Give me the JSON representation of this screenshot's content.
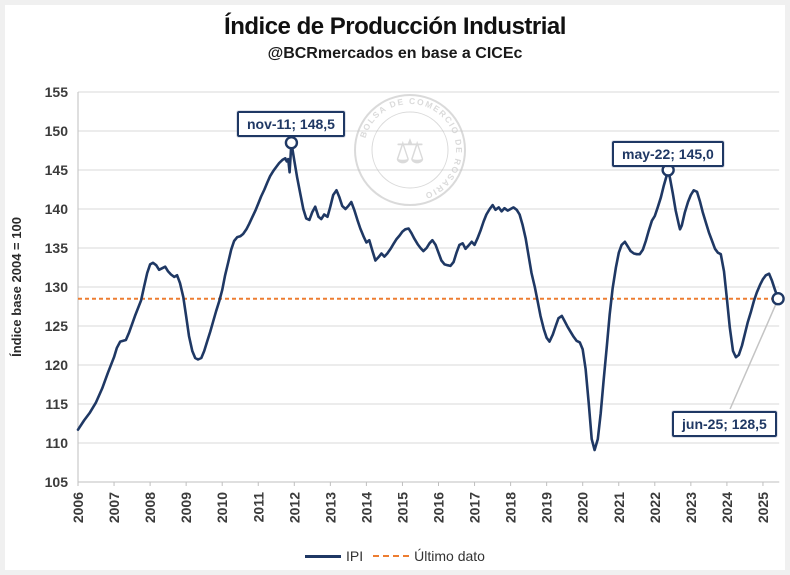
{
  "title": "Índice de Producción Industrial",
  "subtitle": "@BCRmercados en base a CICEc",
  "watermark_text": "BOLSA DE COMERCIO DE ROSARIO",
  "colors": {
    "ipi_line": "#1f3864",
    "ultimo_dato_line": "#ed7d31",
    "grid": "#dadada",
    "axis": "#bfbfbf",
    "tick_text": "#3b3b3b",
    "annotation": "#1f3864",
    "callout": "#c4c4c4",
    "watermark": "#bdbdbd"
  },
  "legend": {
    "items": [
      {
        "label": "IPI"
      },
      {
        "label": "Último dato"
      }
    ]
  },
  "chart_data": {
    "type": "line",
    "title": "Índice de Producción Industrial",
    "subtitle": "@BCRmercados en base a CICEc",
    "xlabel": "",
    "ylabel": "Índice base 2004 = 100",
    "ylim": [
      105,
      155
    ],
    "xlim": [
      2006,
      2025.5
    ],
    "grid": "horizontal",
    "legend_position": "bottom",
    "y_ticks": [
      105,
      110,
      115,
      120,
      125,
      130,
      135,
      140,
      145,
      150,
      155
    ],
    "x_ticks": [
      2006,
      2007,
      2008,
      2009,
      2010,
      2011,
      2012,
      2013,
      2014,
      2015,
      2016,
      2017,
      2018,
      2019,
      2020,
      2021,
      2022,
      2023,
      2024,
      2025
    ],
    "series": [
      {
        "name": "IPI",
        "style": "solid",
        "color": "#1f3864",
        "points": [
          [
            2006.0,
            111.7
          ],
          [
            2006.17,
            112.9
          ],
          [
            2006.33,
            113.9
          ],
          [
            2006.5,
            115.2
          ],
          [
            2006.67,
            117.0
          ],
          [
            2006.83,
            119.0
          ],
          [
            2007.0,
            121.0
          ],
          [
            2007.08,
            122.2
          ],
          [
            2007.17,
            123.0
          ],
          [
            2007.33,
            123.2
          ],
          [
            2007.42,
            124.2
          ],
          [
            2007.58,
            126.3
          ],
          [
            2007.75,
            128.3
          ],
          [
            2007.83,
            130.0
          ],
          [
            2007.92,
            131.8
          ],
          [
            2008.0,
            132.9
          ],
          [
            2008.08,
            133.1
          ],
          [
            2008.17,
            132.8
          ],
          [
            2008.25,
            132.2
          ],
          [
            2008.33,
            132.4
          ],
          [
            2008.42,
            132.6
          ],
          [
            2008.5,
            132.0
          ],
          [
            2008.58,
            131.6
          ],
          [
            2008.67,
            131.3
          ],
          [
            2008.75,
            131.5
          ],
          [
            2008.83,
            130.5
          ],
          [
            2008.92,
            128.7
          ],
          [
            2009.0,
            126.3
          ],
          [
            2009.08,
            123.7
          ],
          [
            2009.17,
            121.8
          ],
          [
            2009.25,
            120.9
          ],
          [
            2009.33,
            120.7
          ],
          [
            2009.42,
            120.9
          ],
          [
            2009.5,
            121.8
          ],
          [
            2009.58,
            123.0
          ],
          [
            2009.67,
            124.3
          ],
          [
            2009.75,
            125.6
          ],
          [
            2009.83,
            126.9
          ],
          [
            2009.92,
            128.2
          ],
          [
            2010.0,
            129.6
          ],
          [
            2010.08,
            131.5
          ],
          [
            2010.17,
            133.2
          ],
          [
            2010.25,
            134.8
          ],
          [
            2010.33,
            135.9
          ],
          [
            2010.42,
            136.4
          ],
          [
            2010.5,
            136.5
          ],
          [
            2010.58,
            136.8
          ],
          [
            2010.67,
            137.4
          ],
          [
            2010.75,
            138.1
          ],
          [
            2010.83,
            138.9
          ],
          [
            2010.92,
            139.8
          ],
          [
            2011.0,
            140.7
          ],
          [
            2011.08,
            141.6
          ],
          [
            2011.17,
            142.5
          ],
          [
            2011.25,
            143.4
          ],
          [
            2011.33,
            144.2
          ],
          [
            2011.42,
            144.9
          ],
          [
            2011.5,
            145.4
          ],
          [
            2011.58,
            145.9
          ],
          [
            2011.67,
            146.3
          ],
          [
            2011.75,
            146.5
          ],
          [
            2011.79,
            146.1
          ],
          [
            2011.83,
            146.4
          ],
          [
            2011.87,
            144.7
          ],
          [
            2011.92,
            148.5
          ],
          [
            2012.0,
            146.2
          ],
          [
            2012.08,
            144.0
          ],
          [
            2012.17,
            141.9
          ],
          [
            2012.25,
            140.0
          ],
          [
            2012.33,
            138.8
          ],
          [
            2012.42,
            138.6
          ],
          [
            2012.5,
            139.6
          ],
          [
            2012.58,
            140.3
          ],
          [
            2012.67,
            139.0
          ],
          [
            2012.75,
            138.7
          ],
          [
            2012.83,
            139.3
          ],
          [
            2012.92,
            139.0
          ],
          [
            2013.0,
            140.3
          ],
          [
            2013.08,
            141.8
          ],
          [
            2013.17,
            142.4
          ],
          [
            2013.25,
            141.5
          ],
          [
            2013.33,
            140.4
          ],
          [
            2013.42,
            140.0
          ],
          [
            2013.5,
            140.4
          ],
          [
            2013.58,
            140.9
          ],
          [
            2013.67,
            139.8
          ],
          [
            2013.75,
            138.6
          ],
          [
            2013.83,
            137.5
          ],
          [
            2013.92,
            136.5
          ],
          [
            2014.0,
            135.7
          ],
          [
            2014.08,
            136.0
          ],
          [
            2014.17,
            134.6
          ],
          [
            2014.25,
            133.4
          ],
          [
            2014.33,
            133.8
          ],
          [
            2014.42,
            134.3
          ],
          [
            2014.5,
            133.9
          ],
          [
            2014.58,
            134.3
          ],
          [
            2014.67,
            134.9
          ],
          [
            2014.75,
            135.5
          ],
          [
            2014.83,
            136.1
          ],
          [
            2014.92,
            136.6
          ],
          [
            2015.0,
            137.1
          ],
          [
            2015.08,
            137.4
          ],
          [
            2015.17,
            137.5
          ],
          [
            2015.25,
            136.9
          ],
          [
            2015.33,
            136.2
          ],
          [
            2015.42,
            135.5
          ],
          [
            2015.5,
            135.0
          ],
          [
            2015.58,
            134.6
          ],
          [
            2015.67,
            135.0
          ],
          [
            2015.75,
            135.6
          ],
          [
            2015.83,
            136.0
          ],
          [
            2015.92,
            135.4
          ],
          [
            2016.0,
            134.4
          ],
          [
            2016.08,
            133.4
          ],
          [
            2016.17,
            132.9
          ],
          [
            2016.25,
            132.8
          ],
          [
            2016.33,
            132.7
          ],
          [
            2016.42,
            133.2
          ],
          [
            2016.5,
            134.4
          ],
          [
            2016.58,
            135.4
          ],
          [
            2016.67,
            135.6
          ],
          [
            2016.75,
            134.9
          ],
          [
            2016.83,
            135.3
          ],
          [
            2016.92,
            135.8
          ],
          [
            2017.0,
            135.4
          ],
          [
            2017.08,
            136.2
          ],
          [
            2017.17,
            137.3
          ],
          [
            2017.25,
            138.4
          ],
          [
            2017.33,
            139.3
          ],
          [
            2017.42,
            140.0
          ],
          [
            2017.5,
            140.5
          ],
          [
            2017.58,
            139.9
          ],
          [
            2017.67,
            140.2
          ],
          [
            2017.75,
            139.7
          ],
          [
            2017.83,
            140.1
          ],
          [
            2017.92,
            139.8
          ],
          [
            2018.0,
            140.0
          ],
          [
            2018.08,
            140.2
          ],
          [
            2018.17,
            139.9
          ],
          [
            2018.25,
            139.3
          ],
          [
            2018.33,
            138.0
          ],
          [
            2018.42,
            136.2
          ],
          [
            2018.5,
            134.0
          ],
          [
            2018.58,
            131.8
          ],
          [
            2018.67,
            130.0
          ],
          [
            2018.75,
            128.2
          ],
          [
            2018.83,
            126.3
          ],
          [
            2018.92,
            124.6
          ],
          [
            2019.0,
            123.5
          ],
          [
            2019.08,
            123.0
          ],
          [
            2019.17,
            123.9
          ],
          [
            2019.25,
            125.0
          ],
          [
            2019.33,
            126.0
          ],
          [
            2019.42,
            126.3
          ],
          [
            2019.5,
            125.6
          ],
          [
            2019.58,
            124.9
          ],
          [
            2019.67,
            124.2
          ],
          [
            2019.75,
            123.6
          ],
          [
            2019.83,
            123.1
          ],
          [
            2019.92,
            122.9
          ],
          [
            2020.0,
            122.0
          ],
          [
            2020.08,
            119.5
          ],
          [
            2020.17,
            115.0
          ],
          [
            2020.25,
            110.5
          ],
          [
            2020.33,
            109.1
          ],
          [
            2020.42,
            110.5
          ],
          [
            2020.5,
            113.8
          ],
          [
            2020.58,
            118.0
          ],
          [
            2020.67,
            122.5
          ],
          [
            2020.75,
            126.5
          ],
          [
            2020.83,
            129.8
          ],
          [
            2020.92,
            132.5
          ],
          [
            2021.0,
            134.4
          ],
          [
            2021.08,
            135.4
          ],
          [
            2021.17,
            135.8
          ],
          [
            2021.25,
            135.2
          ],
          [
            2021.33,
            134.6
          ],
          [
            2021.42,
            134.3
          ],
          [
            2021.5,
            134.2
          ],
          [
            2021.58,
            134.2
          ],
          [
            2021.67,
            134.8
          ],
          [
            2021.75,
            135.9
          ],
          [
            2021.83,
            137.2
          ],
          [
            2021.92,
            138.5
          ],
          [
            2022.0,
            139.1
          ],
          [
            2022.08,
            140.2
          ],
          [
            2022.17,
            141.5
          ],
          [
            2022.25,
            143.0
          ],
          [
            2022.33,
            144.3
          ],
          [
            2022.37,
            145.0
          ],
          [
            2022.42,
            144.0
          ],
          [
            2022.5,
            142.0
          ],
          [
            2022.58,
            139.8
          ],
          [
            2022.67,
            137.9
          ],
          [
            2022.7,
            137.4
          ],
          [
            2022.75,
            137.9
          ],
          [
            2022.83,
            139.5
          ],
          [
            2022.92,
            140.9
          ],
          [
            2023.0,
            141.8
          ],
          [
            2023.08,
            142.4
          ],
          [
            2023.17,
            142.2
          ],
          [
            2023.25,
            141.0
          ],
          [
            2023.33,
            139.6
          ],
          [
            2023.42,
            138.2
          ],
          [
            2023.5,
            137.0
          ],
          [
            2023.58,
            136.0
          ],
          [
            2023.67,
            134.9
          ],
          [
            2023.75,
            134.4
          ],
          [
            2023.83,
            134.2
          ],
          [
            2023.92,
            132.0
          ],
          [
            2024.0,
            128.5
          ],
          [
            2024.08,
            124.8
          ],
          [
            2024.17,
            121.8
          ],
          [
            2024.25,
            121.0
          ],
          [
            2024.33,
            121.3
          ],
          [
            2024.42,
            122.5
          ],
          [
            2024.5,
            124.0
          ],
          [
            2024.58,
            125.5
          ],
          [
            2024.67,
            126.9
          ],
          [
            2024.75,
            128.2
          ],
          [
            2024.83,
            129.3
          ],
          [
            2024.92,
            130.3
          ],
          [
            2025.0,
            131.0
          ],
          [
            2025.08,
            131.5
          ],
          [
            2025.17,
            131.7
          ],
          [
            2025.25,
            130.8
          ],
          [
            2025.33,
            129.7
          ],
          [
            2025.42,
            128.5
          ]
        ]
      },
      {
        "name": "Último dato",
        "style": "dashed",
        "color": "#ed7d31",
        "value": 128.5
      }
    ],
    "annotations": [
      {
        "label": "nov-11; 148,5",
        "x": 2011.92,
        "y": 148.5
      },
      {
        "label": "may-22; 145,0",
        "x": 2022.37,
        "y": 145.0
      },
      {
        "label": "jun-25; 128,5",
        "x": 2025.42,
        "y": 128.5
      }
    ]
  }
}
